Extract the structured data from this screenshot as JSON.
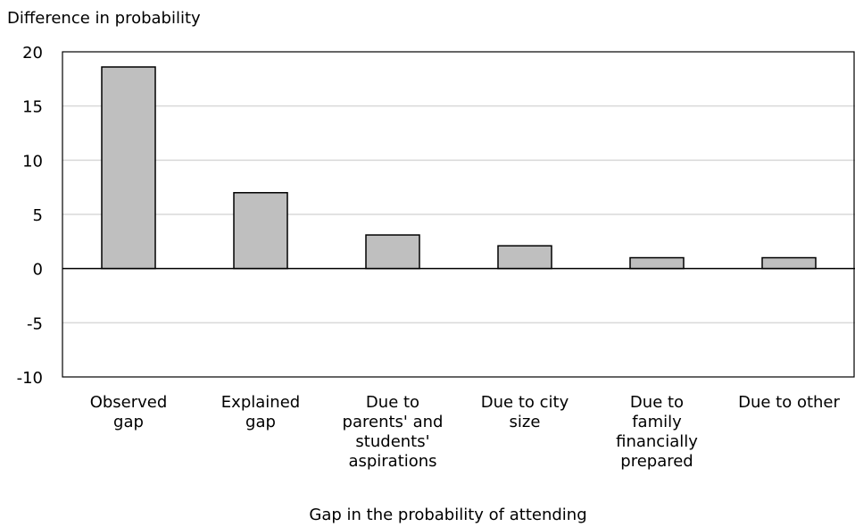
{
  "chart_data": {
    "type": "bar",
    "ylabel": "Difference in probability",
    "xlabel": "Gap in the probability of attending",
    "categories": [
      [
        "Observed",
        "gap"
      ],
      [
        "Explained",
        "gap"
      ],
      [
        "Due to",
        "parents' and",
        "students'",
        "aspirations"
      ],
      [
        "Due to city",
        "size"
      ],
      [
        "Due to",
        "family",
        "financially",
        "prepared"
      ],
      [
        "Due to other"
      ]
    ],
    "values": [
      18.6,
      7.0,
      3.1,
      2.1,
      1.0,
      1.0
    ],
    "ylim": [
      -10,
      20
    ],
    "yticks": [
      -10,
      -5,
      0,
      5,
      10,
      15,
      20
    ],
    "grid": true,
    "bar_color": "#bfbfbf",
    "bar_edge_color": "#000000",
    "grid_color": "#d9d9d9"
  }
}
